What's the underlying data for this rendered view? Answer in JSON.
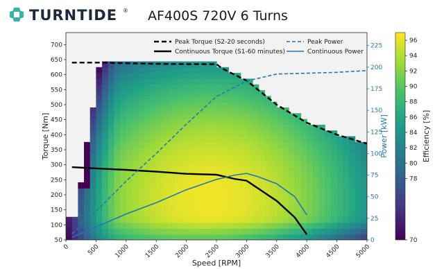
{
  "header": {
    "logo_text": "TURNTIDE",
    "logo_mark": "®",
    "title": "AF400S 720V 6 Turns"
  },
  "chart_data": {
    "type": "heatmap",
    "title": "AF400S 720V 6 Turns",
    "xlabel": "Speed [RPM]",
    "ylabel": "Torque [Nm]",
    "y2label": "Power [kW]",
    "colorbar_label": "Efficiency [%]",
    "xlim": [
      0,
      5000
    ],
    "ylim": [
      50,
      740
    ],
    "y2lim": [
      0,
      240
    ],
    "clim": [
      70,
      97
    ],
    "x_ticks": [
      0,
      500,
      1000,
      1500,
      2000,
      2500,
      3000,
      3500,
      4000,
      4500,
      5000
    ],
    "y_ticks": [
      50,
      100,
      150,
      200,
      250,
      300,
      350,
      400,
      450,
      500,
      550,
      600,
      650,
      700
    ],
    "y2_ticks": [
      0,
      25,
      50,
      75,
      100,
      125,
      150,
      175,
      200,
      225
    ],
    "colorbar_ticks": [
      70,
      78,
      80,
      82,
      84,
      86,
      88,
      90,
      92,
      94,
      96
    ],
    "legend_position": "top",
    "colors": {
      "torque": "#000000",
      "power": "#1f77b4",
      "colormap": [
        "#440154",
        "#46327e",
        "#365c8d",
        "#277f8e",
        "#1fa187",
        "#4ac16d",
        "#a0da39",
        "#fde725"
      ]
    },
    "series": [
      {
        "name": "Peak Torque (S2-20 seconds)",
        "style": "dashed",
        "axis": "left",
        "x": [
          100,
          600,
          1000,
          1500,
          2000,
          2500,
          2600,
          3000,
          3500,
          4000,
          4500,
          5000
        ],
        "y": [
          640,
          640,
          638,
          636,
          635,
          635,
          620,
          580,
          500,
          440,
          400,
          370
        ]
      },
      {
        "name": "Continuous Torque (S1-60 minutes)",
        "style": "solid",
        "axis": "left",
        "x": [
          100,
          300,
          600,
          1000,
          1500,
          2000,
          2500,
          2800,
          3000,
          3200,
          3500,
          3800,
          4000
        ],
        "y": [
          292,
          290,
          287,
          283,
          277,
          270,
          267,
          253,
          247,
          220,
          180,
          125,
          68
        ]
      },
      {
        "name": "Peak Power",
        "style": "dashed",
        "axis": "right",
        "x": [
          100,
          500,
          1000,
          1500,
          2000,
          2500,
          3000,
          3500,
          4000,
          4500,
          5000
        ],
        "y": [
          7,
          33,
          68,
          100,
          134,
          166,
          184,
          192,
          193,
          194,
          196
        ]
      },
      {
        "name": "Continuous Power",
        "style": "solid",
        "axis": "right",
        "x": [
          100,
          500,
          1000,
          1500,
          2000,
          2500,
          2800,
          3000,
          3200,
          3500,
          3800,
          4000
        ],
        "y": [
          3,
          15,
          30,
          43,
          58,
          70,
          75,
          77,
          73,
          65,
          50,
          29
        ]
      }
    ]
  }
}
